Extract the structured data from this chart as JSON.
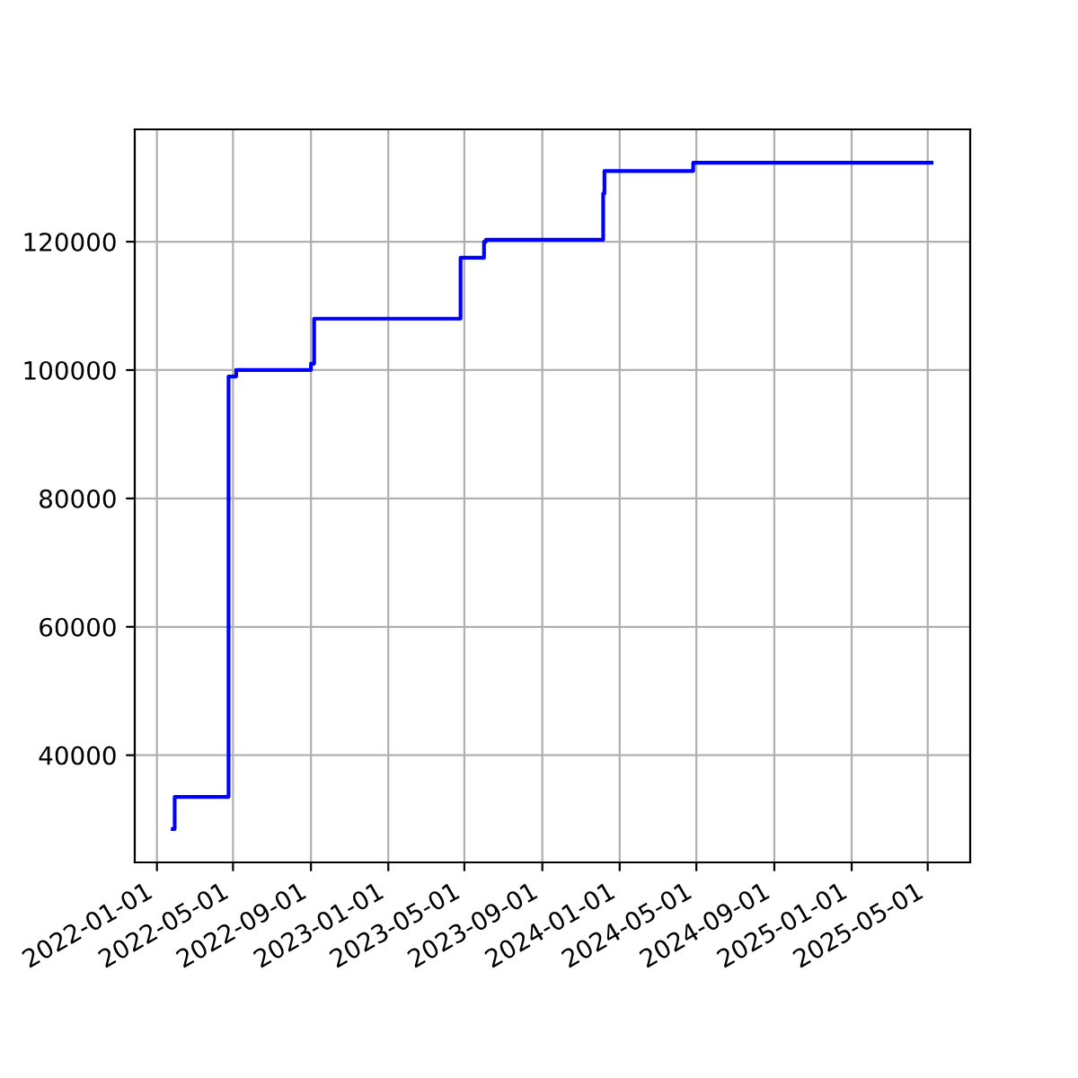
{
  "chart_data": {
    "type": "step",
    "x": [
      "2022-01-26",
      "2022-01-29",
      "2022-04-24",
      "2022-05-06",
      "2022-09-01",
      "2022-09-06",
      "2023-04-25",
      "2023-06-01",
      "2023-06-04",
      "2023-12-06",
      "2023-12-08",
      "2024-04-26",
      "2025-05-07"
    ],
    "series": [
      {
        "color": "#0000ff",
        "values": [
          28500,
          33500,
          99000,
          100000,
          101000,
          108000,
          117500,
          120000,
          120300,
          127500,
          131000,
          132300,
          132300
        ]
      }
    ],
    "xlim": [
      "2021-11-27",
      "2025-07-07"
    ],
    "xticks": [
      "2022-01-01",
      "2022-05-01",
      "2022-09-01",
      "2023-01-01",
      "2023-05-01",
      "2023-09-01",
      "2024-01-01",
      "2024-05-01",
      "2024-09-01",
      "2025-01-01",
      "2025-05-01"
    ],
    "ylim": [
      23300,
      137500
    ],
    "yticks": [
      40000,
      60000,
      80000,
      100000,
      120000
    ],
    "grid": true
  }
}
